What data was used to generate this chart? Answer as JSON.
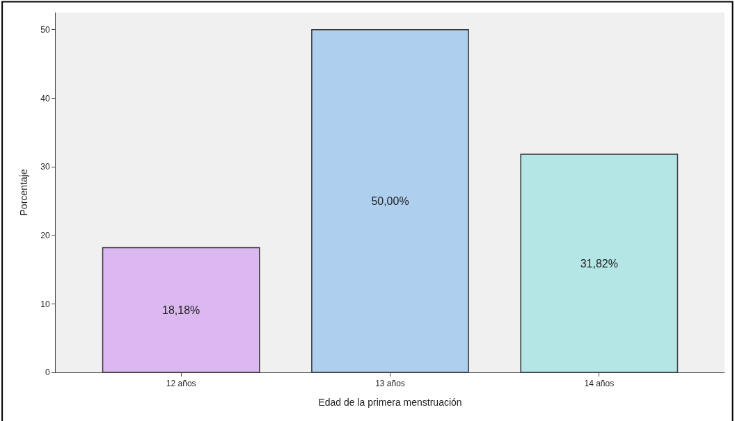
{
  "chart_data": {
    "type": "bar",
    "xlabel": "Edad de la primera menstruación",
    "ylabel": "Porcentaje",
    "categories": [
      "12 años",
      "13 años",
      "14 años"
    ],
    "values": [
      18.18,
      50.0,
      31.82
    ],
    "colors": [
      "#dcb8f0",
      "#aecfee",
      "#b5e6e6"
    ],
    "value_labels": [
      "18,18%",
      "50,00%",
      "31,82%"
    ],
    "ylim": [
      0,
      52.5
    ],
    "yticks": [
      0,
      10,
      20,
      30,
      40,
      50
    ],
    "grid": false,
    "legend": false
  }
}
